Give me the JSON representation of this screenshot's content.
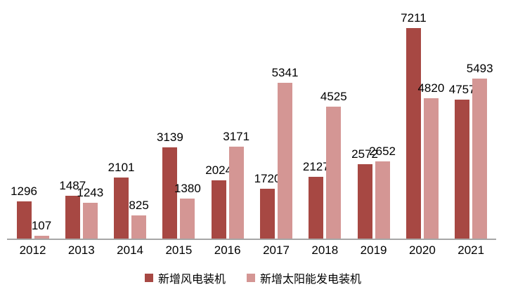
{
  "chart_data": {
    "type": "bar",
    "categories": [
      "2012",
      "2013",
      "2014",
      "2015",
      "2016",
      "2017",
      "2018",
      "2019",
      "2020",
      "2021"
    ],
    "series": [
      {
        "name": "新增风电装机",
        "color": "#a74843",
        "values": [
          1296,
          1487,
          2101,
          3139,
          2024,
          1720,
          2127,
          2572,
          7211,
          4757
        ]
      },
      {
        "name": "新增太阳能发电装机",
        "color": "#d49694",
        "values": [
          107,
          1243,
          825,
          1380,
          3171,
          5341,
          4525,
          2652,
          4820,
          5493
        ]
      }
    ],
    "title": "",
    "xlabel": "",
    "ylabel": "",
    "ylim": [
      0,
      7211
    ],
    "grid": false,
    "legend_position": "bottom",
    "data_labels": true
  },
  "colors": {
    "axis": "#a6a6a6",
    "text": "#000000",
    "background": "#ffffff"
  }
}
